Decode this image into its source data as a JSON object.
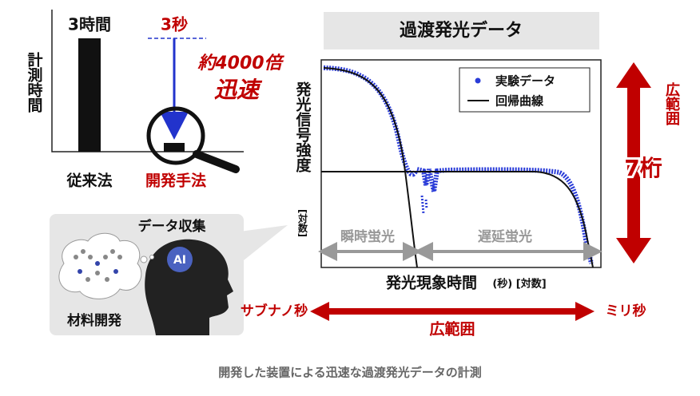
{
  "left_panel": {
    "y_label": "計測時間",
    "bar_conventional_label": "3時間",
    "bar_new_label": "3秒",
    "speedup": "約4000倍",
    "speedup_word": "迅速",
    "conventional": "従来法",
    "new_method": "開発手法"
  },
  "ai_panel": {
    "data_collection": "データ収集",
    "ai": "AI",
    "materials": "材料開発"
  },
  "plot": {
    "title": "過渡発光データ",
    "y_label": "発光信号強度",
    "y_unit": "[対数]",
    "legend": [
      "実験データ",
      "回帰曲線"
    ],
    "prompt_label": "瞬時蛍光",
    "delayed_label": "遅延蛍光",
    "x_label": "発光現象時間",
    "x_unit": "(秒) [対数]"
  },
  "range_vertical": {
    "label": "広範囲",
    "digits": "7桁"
  },
  "range_horizontal": {
    "start": "サブナノ秒",
    "end": "ミリ秒",
    "label": "広範囲"
  },
  "caption": "開発した装置による迅速な過渡発光データの計測"
}
